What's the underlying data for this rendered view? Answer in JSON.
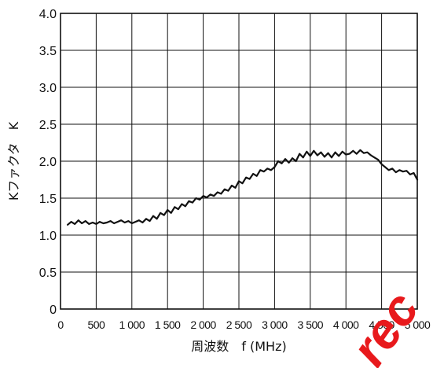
{
  "chart_data": {
    "type": "line",
    "xlabel": "周波数　f (MHz)",
    "ylabel": "Kファクタ　K",
    "xlim": [
      0,
      5000
    ],
    "ylim": [
      0,
      4.0
    ],
    "grid": true,
    "legend": "none",
    "x_ticks": [
      "0",
      "500",
      "1 000",
      "1 500",
      "2 000",
      "2 500",
      "3 000",
      "3 500",
      "4 000",
      "4 500",
      "5 000"
    ],
    "x_tick_values": [
      0,
      500,
      1000,
      1500,
      2000,
      2500,
      3000,
      3500,
      4000,
      4500,
      5000
    ],
    "y_ticks": [
      "0",
      "0.5",
      "1.0",
      "1.5",
      "2.0",
      "2.5",
      "3.0",
      "3.5",
      "4.0"
    ],
    "y_tick_values": [
      0,
      0.5,
      1.0,
      1.5,
      2.0,
      2.5,
      3.0,
      3.5,
      4.0
    ],
    "series": [
      {
        "x": [
          100,
          150,
          200,
          250,
          300,
          350,
          400,
          450,
          500,
          550,
          600,
          650,
          700,
          750,
          800,
          850,
          900,
          950,
          1000,
          1050,
          1100,
          1150,
          1200,
          1250,
          1300,
          1350,
          1400,
          1450,
          1500,
          1550,
          1600,
          1650,
          1700,
          1750,
          1800,
          1850,
          1900,
          1950,
          2000,
          2050,
          2100,
          2150,
          2200,
          2250,
          2300,
          2350,
          2400,
          2450,
          2500,
          2550,
          2600,
          2650,
          2700,
          2750,
          2800,
          2850,
          2900,
          2950,
          3000,
          3050,
          3100,
          3150,
          3200,
          3250,
          3300,
          3350,
          3400,
          3450,
          3500,
          3550,
          3600,
          3650,
          3700,
          3750,
          3800,
          3850,
          3900,
          3950,
          4000,
          4050,
          4100,
          4150,
          4200,
          4250,
          4300,
          4350,
          4400,
          4450,
          4500,
          4550,
          4600,
          4650,
          4700,
          4750,
          4800,
          4850,
          4900,
          4950,
          5000
        ],
        "values": [
          1.14,
          1.18,
          1.15,
          1.2,
          1.16,
          1.19,
          1.15,
          1.17,
          1.15,
          1.18,
          1.16,
          1.17,
          1.19,
          1.16,
          1.18,
          1.2,
          1.17,
          1.19,
          1.16,
          1.18,
          1.2,
          1.17,
          1.22,
          1.19,
          1.26,
          1.22,
          1.3,
          1.27,
          1.34,
          1.3,
          1.38,
          1.35,
          1.42,
          1.39,
          1.46,
          1.44,
          1.5,
          1.48,
          1.53,
          1.51,
          1.55,
          1.53,
          1.58,
          1.56,
          1.62,
          1.6,
          1.67,
          1.64,
          1.73,
          1.7,
          1.78,
          1.76,
          1.83,
          1.8,
          1.88,
          1.86,
          1.9,
          1.88,
          1.92,
          2.0,
          1.97,
          2.03,
          1.98,
          2.04,
          2.0,
          2.1,
          2.05,
          2.13,
          2.07,
          2.14,
          2.08,
          2.12,
          2.06,
          2.11,
          2.05,
          2.12,
          2.07,
          2.13,
          2.09,
          2.1,
          2.14,
          2.1,
          2.15,
          2.11,
          2.12,
          2.08,
          2.05,
          2.02,
          1.96,
          1.92,
          1.88,
          1.9,
          1.85,
          1.88,
          1.86,
          1.87,
          1.82,
          1.84,
          1.75
        ]
      }
    ]
  },
  "watermark": {
    "text": "rec",
    "color": "#e8191c"
  }
}
